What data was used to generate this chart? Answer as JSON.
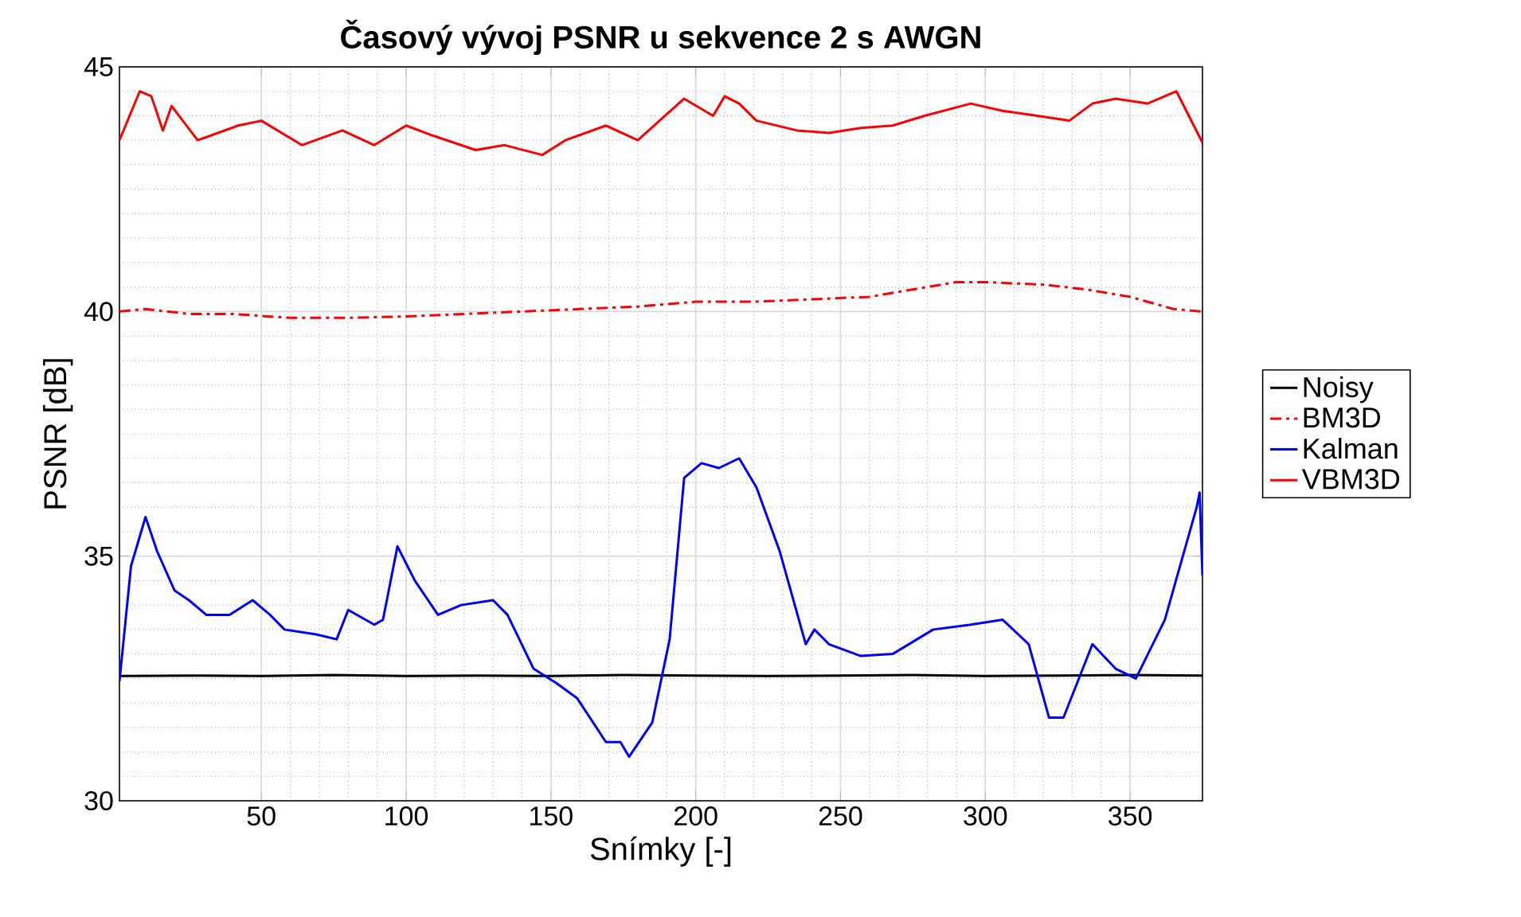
{
  "chart_data": {
    "type": "line",
    "title": "Časový vývoj PSNR u sekvence 2 s AWGN",
    "xlabel": "Snímky [-]",
    "ylabel": "PSNR [dB]",
    "xlim": [
      1,
      375
    ],
    "ylim": [
      30,
      45
    ],
    "xticks": [
      50,
      100,
      150,
      200,
      250,
      300,
      350
    ],
    "yticks": [
      30,
      35,
      40,
      45
    ],
    "grid": true,
    "legend": "right",
    "marker": "none",
    "series": [
      {
        "name": "Noisy",
        "color": "#000000",
        "line_style": "solid",
        "x": [
          1,
          25,
          50,
          75,
          100,
          125,
          150,
          175,
          200,
          225,
          250,
          275,
          300,
          325,
          350,
          375
        ],
        "values": [
          32.55,
          32.56,
          32.55,
          32.57,
          32.55,
          32.56,
          32.55,
          32.57,
          32.56,
          32.55,
          32.56,
          32.57,
          32.55,
          32.56,
          32.57,
          32.56
        ]
      },
      {
        "name": "BM3D",
        "color": "#ff0000",
        "line_style": "dashed",
        "x": [
          1,
          10,
          25,
          40,
          60,
          80,
          100,
          120,
          140,
          160,
          180,
          200,
          220,
          240,
          260,
          280,
          290,
          300,
          320,
          335,
          350,
          365,
          375
        ],
        "values": [
          40.0,
          40.05,
          39.95,
          39.95,
          39.87,
          39.87,
          39.9,
          39.95,
          40.0,
          40.05,
          40.1,
          40.2,
          40.2,
          40.25,
          40.3,
          40.5,
          40.6,
          40.6,
          40.55,
          40.45,
          40.3,
          40.05,
          40.0
        ]
      },
      {
        "name": "Kalman",
        "color": "#0000ff",
        "line_style": "solid",
        "x": [
          1,
          5,
          10,
          14,
          20,
          25,
          31,
          39,
          47,
          53,
          58,
          69,
          76,
          80,
          89,
          92,
          97,
          103,
          111,
          119,
          130,
          135,
          144,
          152,
          159,
          169,
          174,
          177,
          185,
          191,
          196,
          202,
          208,
          215,
          221,
          229,
          238,
          241,
          246,
          257,
          268,
          282,
          295,
          306,
          315,
          322,
          327,
          337,
          345,
          352,
          362,
          373,
          374,
          375
        ],
        "values": [
          32.44,
          34.8,
          35.8,
          35.1,
          34.3,
          34.1,
          33.8,
          33.8,
          34.1,
          33.8,
          33.5,
          33.4,
          33.3,
          33.9,
          33.6,
          33.7,
          35.2,
          34.5,
          33.8,
          34.0,
          34.1,
          33.8,
          32.7,
          32.4,
          32.1,
          31.2,
          31.2,
          30.9,
          31.6,
          33.3,
          36.6,
          36.9,
          36.8,
          37.0,
          36.4,
          35.1,
          33.2,
          33.5,
          33.2,
          32.96,
          33.0,
          33.5,
          33.6,
          33.7,
          33.2,
          31.7,
          31.7,
          33.2,
          32.7,
          32.5,
          33.7,
          36.0,
          36.3,
          34.6
        ]
      },
      {
        "name": "VBM3D",
        "color": "#ff0000",
        "line_style": "solid",
        "x": [
          1,
          8,
          12,
          16,
          19,
          28,
          42,
          50,
          64,
          78,
          89,
          100,
          109,
          124,
          134,
          147,
          155,
          169,
          180,
          196,
          206,
          210,
          215,
          221,
          235,
          246,
          257,
          268,
          279,
          295,
          306,
          318,
          329,
          337,
          345,
          356,
          366,
          375
        ],
        "values": [
          43.5,
          44.5,
          44.4,
          43.7,
          44.2,
          43.5,
          43.8,
          43.9,
          43.4,
          43.7,
          43.4,
          43.8,
          43.6,
          43.3,
          43.4,
          43.2,
          43.5,
          43.8,
          43.5,
          44.35,
          44.0,
          44.4,
          44.25,
          43.9,
          43.7,
          43.65,
          43.75,
          43.8,
          44.0,
          44.25,
          44.1,
          44.0,
          43.9,
          44.25,
          44.35,
          44.25,
          44.5,
          43.45
        ]
      }
    ]
  }
}
